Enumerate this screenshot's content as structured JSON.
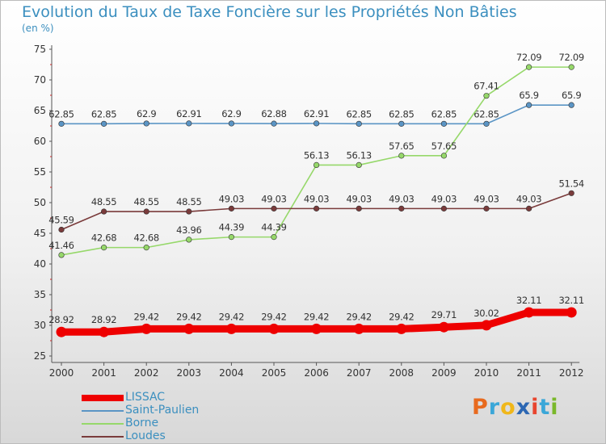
{
  "title": "Evolution du Taux de Taxe Foncière sur les Propriétés Non Bâties",
  "unit_label": "(en %)",
  "logo": {
    "text": "Proxiti",
    "colors": [
      "#e86a1e",
      "#3ba7d8",
      "#f0b71a",
      "#2c67b3",
      "#e8452e",
      "#3ba7d8",
      "#7ab82a"
    ]
  },
  "chart_data": {
    "type": "line",
    "title": "Evolution du Taux de Taxe Foncière sur les Propriétés Non Bâties",
    "ylabel": "(en %)",
    "xlabel": "",
    "ylim": [
      25,
      75
    ],
    "yticks": [
      "25",
      "30",
      "35",
      "40",
      "45",
      "50",
      "55",
      "60",
      "65",
      "70",
      "75"
    ],
    "categories": [
      "2000",
      "2001",
      "2002",
      "2003",
      "2004",
      "2005",
      "2006",
      "2007",
      "2008",
      "2009",
      "2010",
      "2011",
      "2012"
    ],
    "grid": false,
    "legend": "bottom-left",
    "series": [
      {
        "name": "LISSAC",
        "color": "#ee0000",
        "values": [
          28.92,
          28.92,
          29.42,
          29.42,
          29.42,
          29.42,
          29.42,
          29.42,
          29.42,
          29.71,
          30.02,
          32.11,
          32.11
        ],
        "labels": [
          "28.92",
          "28.92",
          "29.42",
          "29.42",
          "29.42",
          "29.42",
          "29.42",
          "29.42",
          "29.42",
          "29.71",
          "30.02",
          "32.11",
          "32.11"
        ]
      },
      {
        "name": "Saint-Paulien",
        "color": "#5b95c5",
        "values": [
          62.85,
          62.85,
          62.9,
          62.91,
          62.9,
          62.88,
          62.91,
          62.85,
          62.85,
          62.85,
          62.85,
          65.9,
          65.9
        ],
        "labels": [
          "62.85",
          "62.85",
          "62.9",
          "62.91",
          "62.9",
          "62.88",
          "62.91",
          "62.85",
          "62.85",
          "62.85",
          "62.85",
          "65.9",
          "65.9"
        ]
      },
      {
        "name": "Borne",
        "color": "#96d86a",
        "values": [
          41.46,
          42.68,
          42.68,
          43.96,
          44.39,
          44.39,
          56.13,
          56.13,
          57.65,
          57.65,
          67.41,
          72.09,
          72.09
        ],
        "labels": [
          "41.46",
          "42.68",
          "42.68",
          "43.96",
          "44.39",
          "44.39",
          "56.13",
          "56.13",
          "57.65",
          "57.65",
          "67.41",
          "72.09",
          "72.09"
        ]
      },
      {
        "name": "Loudes",
        "color": "#7a3b3b",
        "values": [
          45.59,
          48.55,
          48.55,
          48.55,
          49.03,
          49.03,
          49.03,
          49.03,
          49.03,
          49.03,
          49.03,
          49.03,
          51.54
        ],
        "labels": [
          "45.59",
          "48.55",
          "48.55",
          "48.55",
          "49.03",
          "49.03",
          "49.03",
          "49.03",
          "49.03",
          "49.03",
          "49.03",
          "49.03",
          "51.54"
        ]
      }
    ]
  }
}
